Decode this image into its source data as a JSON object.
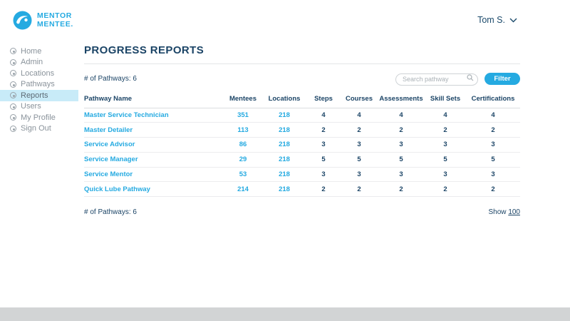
{
  "colors": {
    "brand": "#25aae1",
    "navy": "#1b4466",
    "active_item_bg": "#c8ebf8"
  },
  "header": {
    "logo": {
      "line1": "MENTOR",
      "line2": "MENTEE."
    },
    "user": {
      "name": "Tom S."
    }
  },
  "sidebar": {
    "items": [
      {
        "label": "Home",
        "icon": "home-icon",
        "active": false
      },
      {
        "label": "Admin",
        "icon": "admin-icon",
        "active": false
      },
      {
        "label": "Locations",
        "icon": "locations-icon",
        "active": false
      },
      {
        "label": "Pathways",
        "icon": "pathways-icon",
        "active": false
      },
      {
        "label": "Reports",
        "icon": "reports-icon",
        "active": true
      },
      {
        "label": "Users",
        "icon": "users-icon",
        "active": false
      },
      {
        "label": "My Profile",
        "icon": "my-profile-icon",
        "active": false
      },
      {
        "label": "Sign Out",
        "icon": "sign-out-icon",
        "active": false
      }
    ]
  },
  "main": {
    "title": "PROGRESS REPORTS",
    "pathways_count_label": "# of Pathways: 6",
    "search": {
      "placeholder": "Search pathway"
    },
    "filter_label": "Filter",
    "table": {
      "columns": [
        {
          "label": "Pathway Name",
          "field": "name"
        },
        {
          "label": "Mentees",
          "field": "mentees"
        },
        {
          "label": "Locations",
          "field": "locations"
        },
        {
          "label": "Steps",
          "field": "steps"
        },
        {
          "label": "Courses",
          "field": "courses"
        },
        {
          "label": "Assessments",
          "field": "assessments"
        },
        {
          "label": "Skill Sets",
          "field": "skill_sets"
        },
        {
          "label": "Certifications",
          "field": "certifications"
        }
      ],
      "rows": [
        {
          "name": "Master Service Technician",
          "mentees": "351",
          "locations": "218",
          "steps": "4",
          "courses": "4",
          "assessments": "4",
          "skill_sets": "4",
          "certifications": "4"
        },
        {
          "name": "Master Detailer",
          "mentees": "113",
          "locations": "218",
          "steps": "2",
          "courses": "2",
          "assessments": "2",
          "skill_sets": "2",
          "certifications": "2"
        },
        {
          "name": "Service Advisor",
          "mentees": "86",
          "locations": "218",
          "steps": "3",
          "courses": "3",
          "assessments": "3",
          "skill_sets": "3",
          "certifications": "3"
        },
        {
          "name": "Service Manager",
          "mentees": "29",
          "locations": "218",
          "steps": "5",
          "courses": "5",
          "assessments": "5",
          "skill_sets": "5",
          "certifications": "5"
        },
        {
          "name": "Service Mentor",
          "mentees": "53",
          "locations": "218",
          "steps": "3",
          "courses": "3",
          "assessments": "3",
          "skill_sets": "3",
          "certifications": "3"
        },
        {
          "name": "Quick Lube Pathway",
          "mentees": "214",
          "locations": "218",
          "steps": "2",
          "courses": "2",
          "assessments": "2",
          "skill_sets": "2",
          "certifications": "2"
        }
      ]
    },
    "footer": {
      "pathways_count_label": "# of Pathways: 6",
      "show_label": "Show",
      "show_value": "100"
    }
  }
}
